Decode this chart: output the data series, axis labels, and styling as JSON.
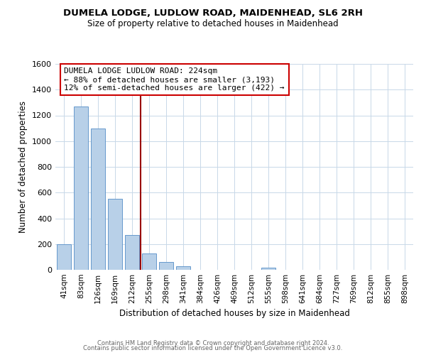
{
  "title": "DUMELA LODGE, LUDLOW ROAD, MAIDENHEAD, SL6 2RH",
  "subtitle": "Size of property relative to detached houses in Maidenhead",
  "xlabel": "Distribution of detached houses by size in Maidenhead",
  "ylabel": "Number of detached properties",
  "footer_line1": "Contains HM Land Registry data © Crown copyright and database right 2024.",
  "footer_line2": "Contains public sector information licensed under the Open Government Licence v3.0.",
  "bar_labels": [
    "41sqm",
    "83sqm",
    "126sqm",
    "169sqm",
    "212sqm",
    "255sqm",
    "298sqm",
    "341sqm",
    "384sqm",
    "426sqm",
    "469sqm",
    "512sqm",
    "555sqm",
    "598sqm",
    "641sqm",
    "684sqm",
    "727sqm",
    "769sqm",
    "812sqm",
    "855sqm",
    "898sqm"
  ],
  "bar_values": [
    200,
    1270,
    1100,
    550,
    270,
    125,
    60,
    30,
    0,
    0,
    0,
    0,
    15,
    0,
    0,
    0,
    0,
    0,
    0,
    0,
    0
  ],
  "bar_color": "#b8d0e8",
  "bar_edge_color": "#6699cc",
  "ylim": [
    0,
    1600
  ],
  "yticks": [
    0,
    200,
    400,
    600,
    800,
    1000,
    1200,
    1400,
    1600
  ],
  "property_line_x": 4.5,
  "property_line_color": "#990000",
  "annotation_title": "DUMELA LODGE LUDLOW ROAD: 224sqm",
  "annotation_line2": "← 88% of detached houses are smaller (3,193)",
  "annotation_line3": "12% of semi-detached houses are larger (422) →",
  "annotation_box_color": "#cc0000",
  "annotation_text_color": "#000000",
  "annotation_bg": "#ffffff",
  "background_color": "#ffffff",
  "grid_color": "#c8d8e8"
}
